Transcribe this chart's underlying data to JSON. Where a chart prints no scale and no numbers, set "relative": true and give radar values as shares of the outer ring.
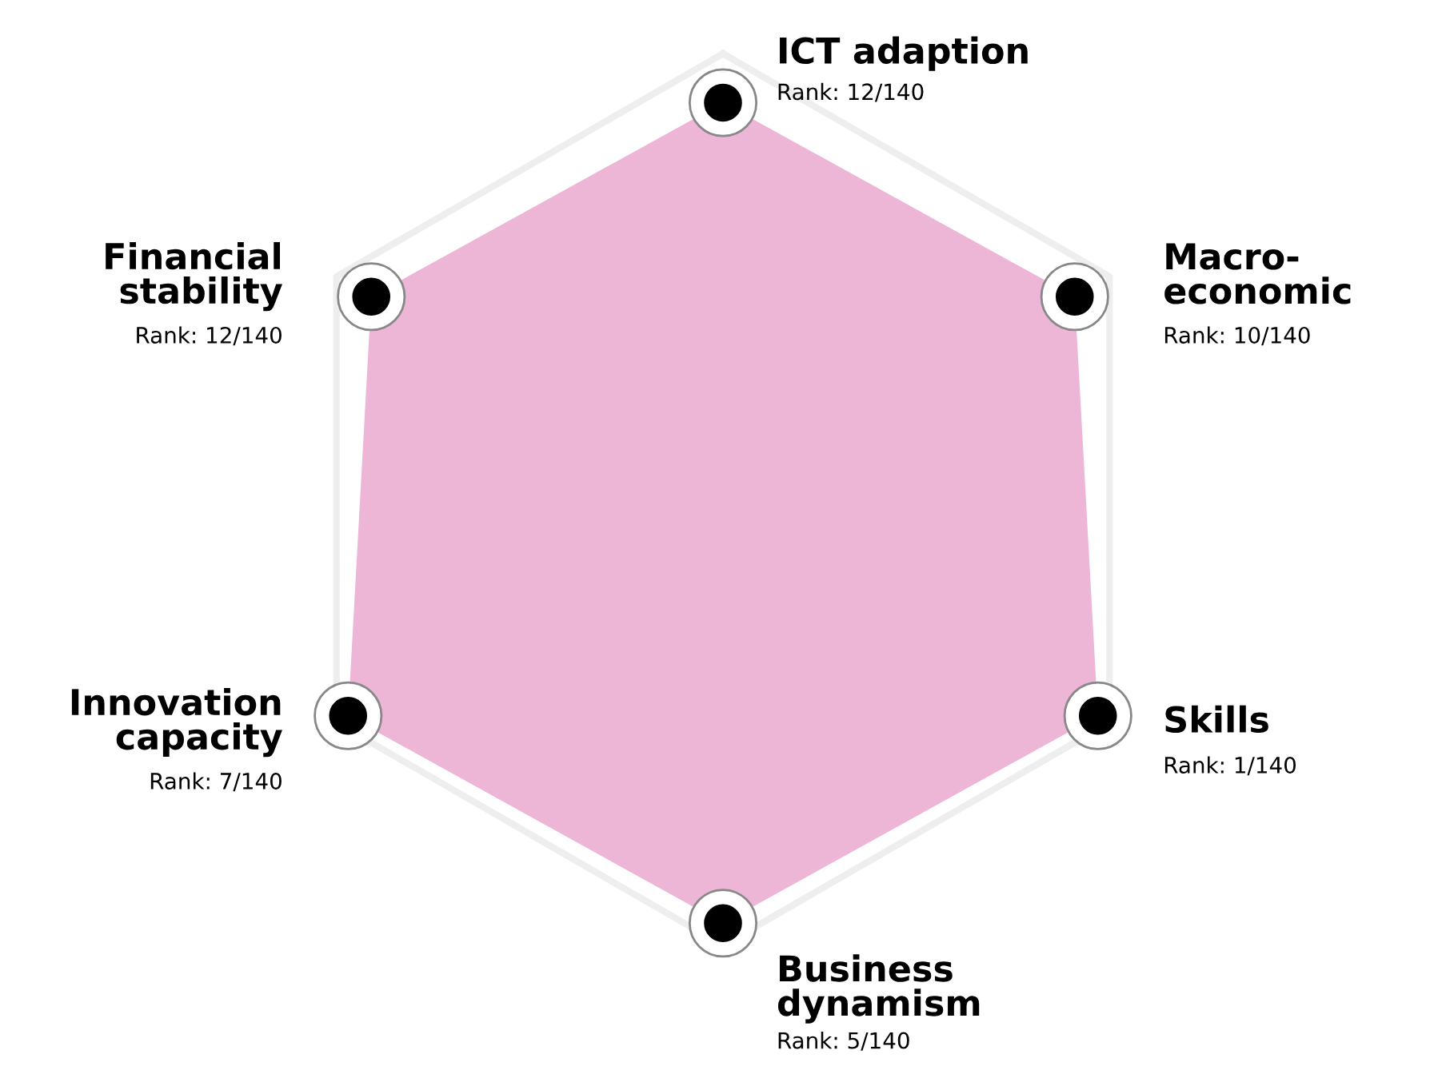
{
  "chart_data": {
    "type": "radar",
    "relative": true,
    "grid": true,
    "marker": "circle",
    "categories": [
      "ICT adaption",
      "Macro-\neconomic",
      "Skills",
      "Business\ndynamism",
      "Innovation\ncapacity",
      "Financial\nstability"
    ],
    "series": [
      {
        "color": "#edb5d6",
        "values": [
          0.89,
          0.91,
          0.97,
          0.95,
          0.97,
          0.91
        ]
      }
    ],
    "annotations": [
      "Rank: 12/140",
      "Rank: 10/140",
      "Rank: 1/140",
      "Rank: 5/140",
      "Rank: 7/140",
      "Rank: 12/140"
    ]
  }
}
